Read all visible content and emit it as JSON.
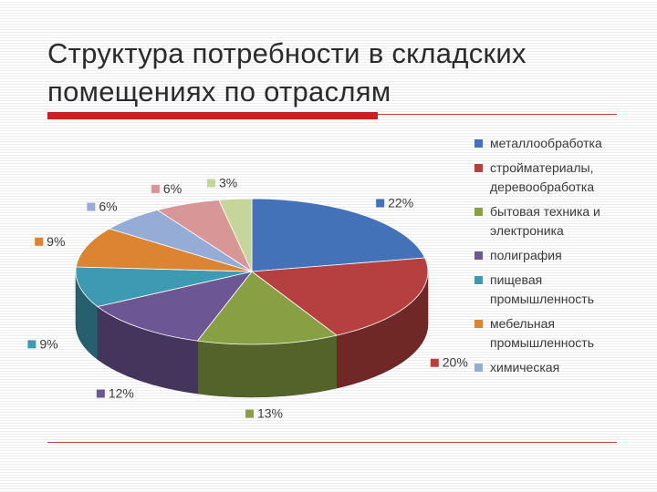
{
  "slide": {
    "title": "Структура потребности в складских помещениях по отраслям"
  },
  "chart_data": {
    "type": "pie",
    "style": "3d",
    "categories": [
      "металлообработка",
      "стройматериалы, деревообработка",
      "бытовая техника и электроника",
      "полиграфия",
      "пищевая промышленность",
      "мебельная промышленность",
      "химическая",
      "",
      ""
    ],
    "values": [
      22,
      20,
      13,
      12,
      9,
      9,
      6,
      6,
      3
    ],
    "data_labels": [
      "22%",
      "20%",
      "13%",
      "12%",
      "9%",
      "9%",
      "6%",
      "6%",
      "3%"
    ],
    "colors": [
      "#4472b9",
      "#b5403f",
      "#86a043",
      "#6c5694",
      "#3d9ab2",
      "#dc8432",
      "#94acd6",
      "#d99696",
      "#c6d69a"
    ],
    "legend_position": "right",
    "legend_entries_shown": 7
  }
}
